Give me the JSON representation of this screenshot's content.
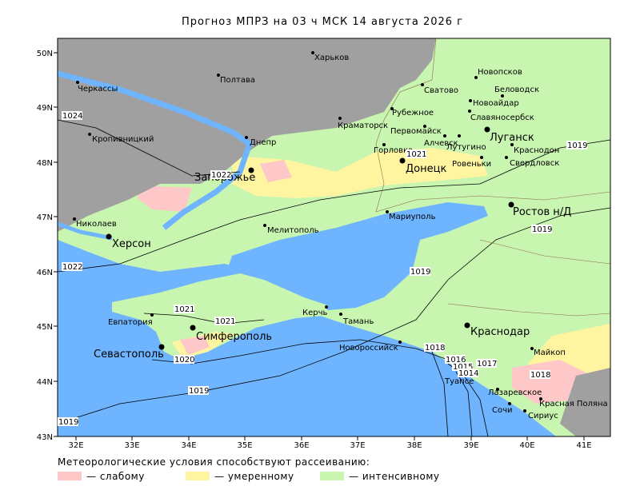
{
  "title": "Прогноз МПРЗ на 03 ч МСК 14 августа 2026 г",
  "map": {
    "lat_labels": [
      "50N",
      "49N",
      "48N",
      "47N",
      "46N",
      "45N",
      "44N",
      "43N"
    ],
    "lon_labels": [
      "32E",
      "33E",
      "34E",
      "35E",
      "36E",
      "37E",
      "38E",
      "39E",
      "40E",
      "41E"
    ],
    "cities": [
      "Харьков",
      "Полтава",
      "Черкассы",
      "Кропивницкий",
      "Днепр",
      "Запорожье",
      "Николаев",
      "Херсон",
      "Мелитополь",
      "Евпатория",
      "Симферополь",
      "Севастополь",
      "Керчь",
      "Тамань",
      "Новороссийск",
      "Туапсе",
      "Сочи",
      "Красная Поляна",
      "Сириус",
      "Лазаревское",
      "Майкоп",
      "Краснодар",
      "Ростов н/Д",
      "Мариуполь",
      "Донецк",
      "Горловка",
      "Краматорск",
      "Сватово",
      "Рубежное",
      "Новопсков",
      "Беловодск",
      "Новоайдар",
      "Славяносербск",
      "Луганск",
      "Краснодон",
      "Свердловск",
      "Ровеньки",
      "Алчевск",
      "Первомайск",
      "Лутугино"
    ],
    "isobars": [
      "1024",
      "1022",
      "1021",
      "1021",
      "1020",
      "1019",
      "1019",
      "1019",
      "1019",
      "1019",
      "1021",
      "1022",
      "1018",
      "1016",
      "1015",
      "1014",
      "1017",
      "1018"
    ]
  },
  "legend": {
    "heading": "Метеорологические условия способствуют рассеиванию:",
    "items": [
      "— слабому",
      "— умеренному",
      "— интенсивному"
    ]
  }
}
